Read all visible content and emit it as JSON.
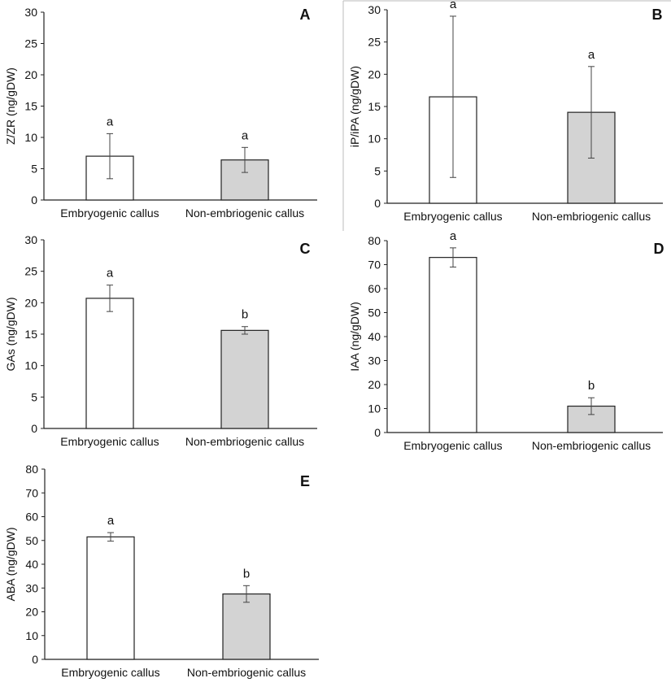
{
  "chart_data": [
    {
      "type": "bar",
      "panel": "A",
      "ylabel": "Z/ZR (ng/gDW)",
      "ylim": [
        0,
        30
      ],
      "yticks": [
        0,
        5,
        10,
        15,
        20,
        25,
        30
      ],
      "categories": [
        "Embryogenic callus",
        "Non-embriogenic callus"
      ],
      "values": [
        7.0,
        6.4
      ],
      "errors": [
        3.6,
        2.0
      ],
      "significance": [
        "a",
        "a"
      ],
      "colors": [
        "#ffffff",
        "#d3d3d3"
      ]
    },
    {
      "type": "bar",
      "panel": "B",
      "ylabel": "iP/iPA (ng/gDW)",
      "ylim": [
        0,
        30
      ],
      "yticks": [
        0,
        5,
        10,
        15,
        20,
        25,
        30
      ],
      "categories": [
        "Embryogenic callus",
        "Non-embriogenic callus"
      ],
      "values": [
        16.5,
        14.1
      ],
      "errors": [
        12.5,
        7.1
      ],
      "significance": [
        "a",
        "a"
      ],
      "colors": [
        "#ffffff",
        "#d3d3d3"
      ]
    },
    {
      "type": "bar",
      "panel": "C",
      "ylabel": "GAs (ng/gDW)",
      "ylim": [
        0,
        30
      ],
      "yticks": [
        0,
        5,
        10,
        15,
        20,
        25,
        30
      ],
      "categories": [
        "Embryogenic callus",
        "Non-embriogenic callus"
      ],
      "values": [
        20.7,
        15.6
      ],
      "errors": [
        2.1,
        0.6
      ],
      "significance": [
        "a",
        "b"
      ],
      "colors": [
        "#ffffff",
        "#d3d3d3"
      ]
    },
    {
      "type": "bar",
      "panel": "D",
      "ylabel": "IAA (ng/gDW)",
      "ylim": [
        0,
        80
      ],
      "yticks": [
        0,
        10,
        20,
        30,
        40,
        50,
        60,
        70,
        80
      ],
      "categories": [
        "Embryogenic callus",
        "Non-embriogenic callus"
      ],
      "values": [
        73,
        11
      ],
      "errors": [
        4,
        3.5
      ],
      "significance": [
        "a",
        "b"
      ],
      "colors": [
        "#ffffff",
        "#d3d3d3"
      ]
    },
    {
      "type": "bar",
      "panel": "E",
      "ylabel": "ABA (ng/gDW)",
      "ylim": [
        0,
        80
      ],
      "yticks": [
        0,
        10,
        20,
        30,
        40,
        50,
        60,
        70,
        80
      ],
      "categories": [
        "Embryogenic callus",
        "Non-embriogenic callus"
      ],
      "values": [
        51.5,
        27.5
      ],
      "errors": [
        1.8,
        3.5
      ],
      "significance": [
        "a",
        "b"
      ],
      "colors": [
        "#ffffff",
        "#d3d3d3"
      ]
    }
  ]
}
